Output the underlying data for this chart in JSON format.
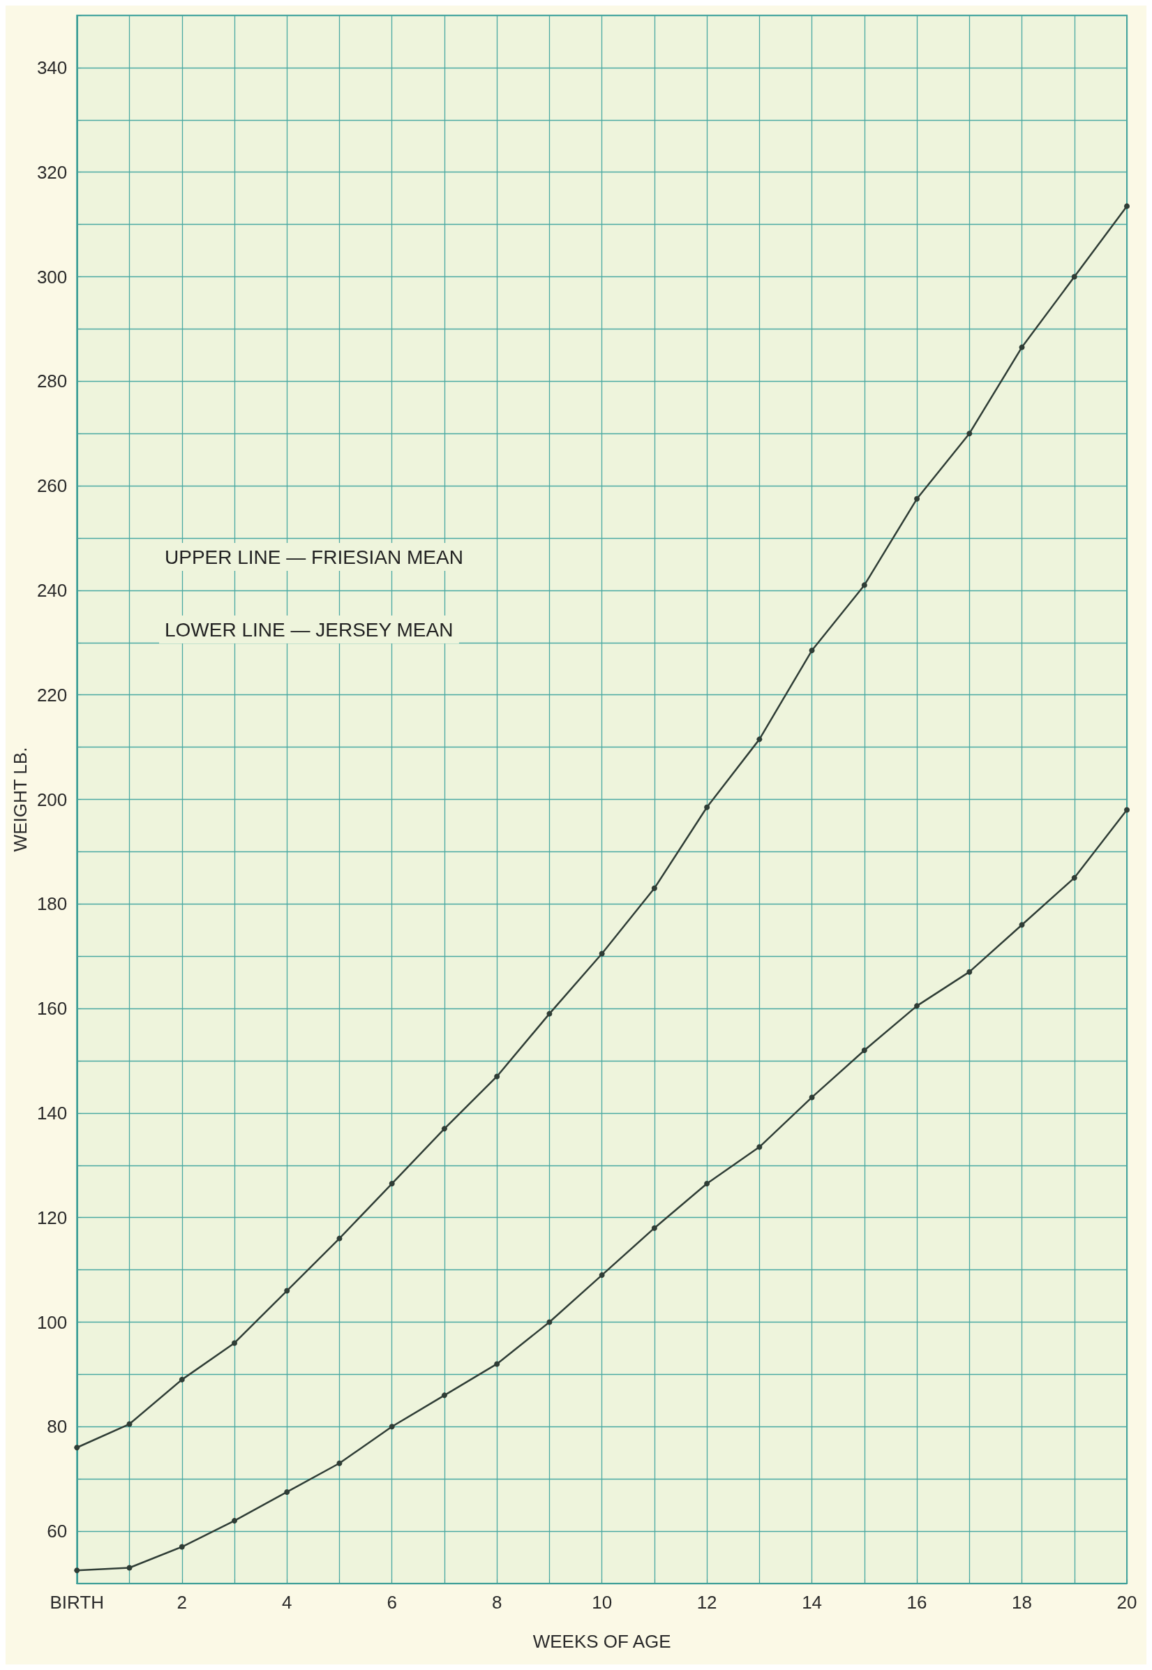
{
  "chart_data": {
    "type": "line",
    "xlabel": "WEEKS OF AGE",
    "ylabel": "WEIGHT LB.",
    "x": [
      0,
      1,
      2,
      3,
      4,
      5,
      6,
      7,
      8,
      9,
      10,
      11,
      12,
      13,
      14,
      15,
      16,
      17,
      18,
      19,
      20
    ],
    "series": [
      {
        "color": "#2f3d36",
        "values": [
          76,
          80.5,
          89,
          96,
          106,
          116,
          126.5,
          137,
          147,
          159,
          170.5,
          183,
          198.5,
          211.5,
          228.5,
          241,
          257.5,
          270,
          286.5,
          300,
          313.5
        ]
      },
      {
        "color": "#2f3d36",
        "values": [
          52.5,
          53,
          57,
          62,
          67.5,
          73,
          80,
          86,
          92,
          100,
          109,
          118,
          126.5,
          133.5,
          143,
          152,
          160.5,
          167,
          176,
          185,
          198
        ]
      }
    ],
    "xlim": [
      0,
      20
    ],
    "xticks": [
      {
        "value": 0,
        "label": "BIRTH"
      },
      {
        "value": 1,
        "label": null
      },
      2,
      {
        "value": 3,
        "label": null
      },
      4,
      {
        "value": 5,
        "label": null
      },
      6,
      {
        "value": 7,
        "label": null
      },
      8,
      {
        "value": 9,
        "label": null
      },
      10,
      {
        "value": 11,
        "label": null
      },
      12,
      {
        "value": 13,
        "label": null
      },
      14,
      {
        "value": 15,
        "label": null
      },
      16,
      {
        "value": 17,
        "label": null
      },
      18,
      {
        "value": 19,
        "label": null
      },
      20
    ],
    "ylim": [
      50,
      350
    ],
    "yticks": [
      {
        "value": 50,
        "label": null
      },
      60,
      {
        "value": 70,
        "label": null
      },
      80,
      {
        "value": 90,
        "label": null
      },
      100,
      {
        "value": 110,
        "label": null
      },
      120,
      {
        "value": 130,
        "label": null
      },
      140,
      {
        "value": 150,
        "label": null
      },
      160,
      {
        "value": 170,
        "label": null
      },
      180,
      {
        "value": 190,
        "label": null
      },
      200,
      {
        "value": 210,
        "label": null
      },
      220,
      {
        "value": 230,
        "label": null
      },
      240,
      {
        "value": 250,
        "label": null
      },
      260,
      {
        "value": 270,
        "label": null
      },
      280,
      {
        "value": 290,
        "label": null
      },
      300,
      {
        "value": 310,
        "label": null
      },
      320,
      {
        "value": 330,
        "label": null
      },
      340,
      {
        "value": 350,
        "label": null
      }
    ],
    "annotations": [
      "UPPER LINE — FRIESIAN MEAN",
      "LOWER LINE — JERSEY MEAN"
    ],
    "grid": true,
    "marker": "circle",
    "line_style": "solid"
  }
}
